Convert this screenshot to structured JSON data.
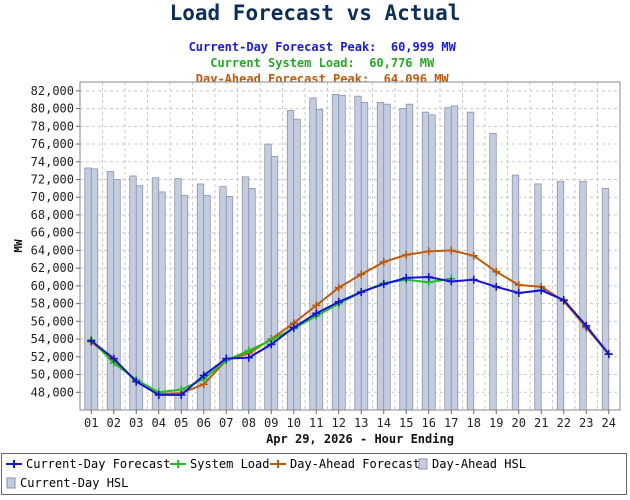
{
  "chart_data": {
    "type": "bar+line",
    "title": "Load Forecast vs Actual",
    "subtitles": [
      {
        "label": "Current-Day Forecast Peak:",
        "value": "60,999 MW",
        "color": "#1a1ae6"
      },
      {
        "label": "Current System Load:",
        "value": "60,776 MW",
        "color": "#28a828"
      },
      {
        "label": "Day-Ahead Forecast Peak:",
        "value": "64,096 MW",
        "color": "#c05a0a"
      }
    ],
    "xlabel": "Apr 29, 2026 - Hour Ending",
    "ylabel": "MW",
    "ylim": [
      46000,
      83000
    ],
    "yticks": [
      48000,
      50000,
      52000,
      54000,
      56000,
      58000,
      60000,
      62000,
      64000,
      66000,
      68000,
      70000,
      72000,
      74000,
      76000,
      78000,
      80000,
      82000
    ],
    "ytick_labels": [
      "48,000",
      "50,000",
      "52,000",
      "54,000",
      "56,000",
      "58,000",
      "60,000",
      "62,000",
      "64,000",
      "66,000",
      "68,000",
      "70,000",
      "72,000",
      "74,000",
      "76,000",
      "78,000",
      "80,000",
      "82,000"
    ],
    "categories": [
      "01",
      "02",
      "03",
      "04",
      "05",
      "06",
      "07",
      "08",
      "09",
      "10",
      "11",
      "12",
      "13",
      "14",
      "15",
      "16",
      "17",
      "18",
      "19",
      "20",
      "21",
      "22",
      "23",
      "24"
    ],
    "grid": true,
    "bars": [
      {
        "name": "Day-Ahead HSL",
        "color": "#c4cde0",
        "values": [
          73300,
          72900,
          72400,
          72200,
          72100,
          71500,
          71200,
          72300,
          76000,
          79800,
          81200,
          81600,
          81400,
          80700,
          80000,
          79600,
          80100,
          79600,
          77200,
          72500,
          71500,
          71800,
          71800,
          71000
        ]
      },
      {
        "name": "Current-Day HSL",
        "color": "#c4cde0",
        "values": [
          73200,
          72000,
          71300,
          70600,
          70200,
          70200,
          70100,
          71000,
          74600,
          78800,
          79900,
          81500,
          80700,
          80500,
          80500,
          79300,
          80300,
          null,
          null,
          null,
          null,
          null,
          null,
          null
        ]
      }
    ],
    "lines": [
      {
        "name": "Current-Day Forecast",
        "color": "#1515d0",
        "marker": "+",
        "values": [
          53800,
          51800,
          49200,
          47700,
          47700,
          49900,
          51800,
          51900,
          53400,
          55300,
          56900,
          58200,
          59300,
          60200,
          60900,
          61000,
          60500,
          60700,
          59900,
          59200,
          59500,
          58400,
          55500,
          52300
        ]
      },
      {
        "name": "System Load",
        "color": "#22c022",
        "marker": "+",
        "values": [
          53900,
          51300,
          49400,
          48000,
          48300,
          49500,
          51600,
          52700,
          53900,
          55200,
          56600,
          58000,
          59300,
          60300,
          60700,
          60400,
          60800,
          null,
          null,
          null,
          null,
          null,
          null,
          null
        ]
      },
      {
        "name": "Day-Ahead Forecast",
        "color": "#c05a0a",
        "marker": "+",
        "values": [
          53700,
          51600,
          49300,
          47800,
          47900,
          48900,
          51600,
          52400,
          54000,
          55800,
          57800,
          59800,
          61300,
          62700,
          63500,
          63900,
          64000,
          63400,
          61600,
          60100,
          59900,
          58300,
          55300,
          52300
        ]
      }
    ],
    "legend": {
      "placement": "bottom",
      "items": [
        "Current-Day Forecast",
        "System Load",
        "Day-Ahead Forecast",
        "Day-Ahead HSL",
        "Current-Day HSL"
      ]
    }
  }
}
